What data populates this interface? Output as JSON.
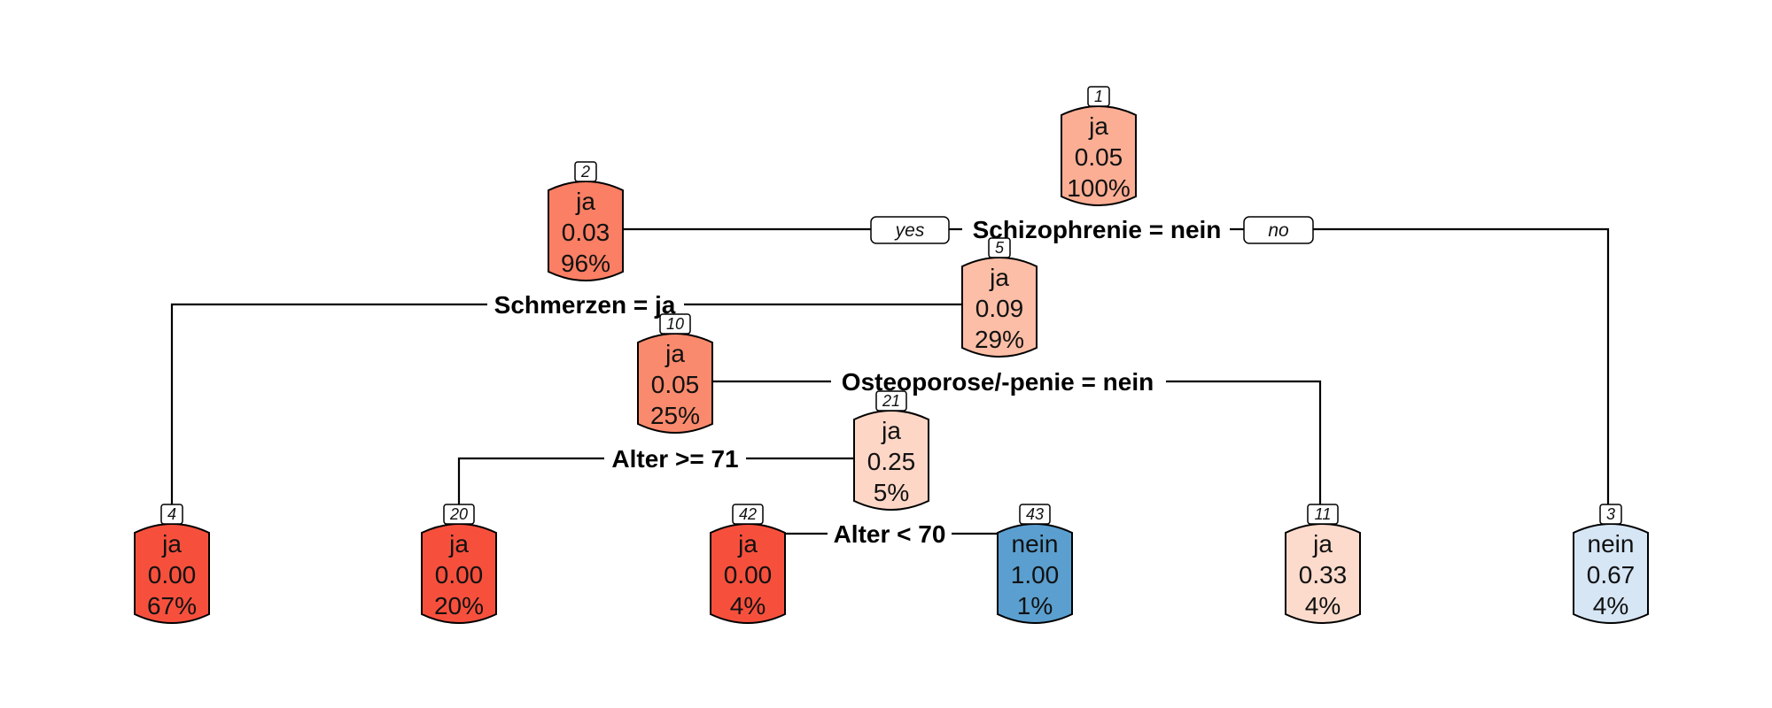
{
  "nodes": [
    {
      "id": "1",
      "label": "ja",
      "value": "0.05",
      "percent": "100%",
      "color": "#fbae94"
    },
    {
      "id": "2",
      "label": "ja",
      "value": "0.03",
      "percent": "96%",
      "color": "#fa7f64"
    },
    {
      "id": "5",
      "label": "ja",
      "value": "0.09",
      "percent": "29%",
      "color": "#fcbea6"
    },
    {
      "id": "10",
      "label": "ja",
      "value": "0.05",
      "percent": "25%",
      "color": "#fa8a6d"
    },
    {
      "id": "21",
      "label": "ja",
      "value": "0.25",
      "percent": "5%",
      "color": "#fdd6c6"
    },
    {
      "id": "4",
      "label": "ja",
      "value": "0.00",
      "percent": "67%",
      "color": "#f6503d"
    },
    {
      "id": "20",
      "label": "ja",
      "value": "0.00",
      "percent": "20%",
      "color": "#f6503d"
    },
    {
      "id": "42",
      "label": "ja",
      "value": "0.00",
      "percent": "4%",
      "color": "#f6503d"
    },
    {
      "id": "43",
      "label": "nein",
      "value": "1.00",
      "percent": "1%",
      "color": "#5a9fcf"
    },
    {
      "id": "11",
      "label": "ja",
      "value": "0.33",
      "percent": "4%",
      "color": "#fddbcc"
    },
    {
      "id": "3",
      "label": "nein",
      "value": "0.67",
      "percent": "4%",
      "color": "#d6e6f5"
    }
  ],
  "splits": [
    {
      "text": "Schizophrenie = nein"
    },
    {
      "text": "Schmerzen = ja"
    },
    {
      "text": "Osteoporose/-penie = nein"
    },
    {
      "text": "Alter >= 71"
    },
    {
      "text": "Alter < 70"
    }
  ],
  "branch_labels": {
    "yes": "yes",
    "no": "no"
  }
}
